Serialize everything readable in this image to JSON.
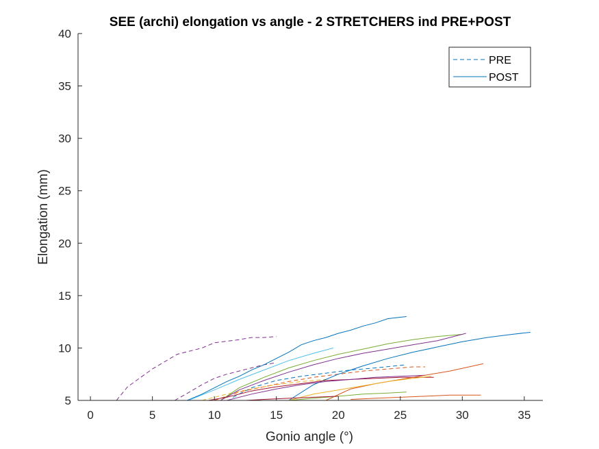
{
  "chart_data": {
    "type": "line",
    "title": "SEE (archi) elongation vs angle - 2 STRETCHERS ind PRE+POST",
    "xlabel": "Gonio angle (°)",
    "ylabel": "Elongation (mm)",
    "xlim": [
      -1,
      36.5
    ],
    "ylim": [
      5,
      40
    ],
    "xticks": [
      0,
      5,
      10,
      15,
      20,
      25,
      30,
      35
    ],
    "yticks": [
      5,
      10,
      15,
      20,
      25,
      30,
      35,
      40
    ],
    "grid": false,
    "legend": {
      "placement": "top-right",
      "entries": [
        {
          "label": "PRE",
          "style": "dashed",
          "color": "#0072BD"
        },
        {
          "label": "POST",
          "style": "solid",
          "color": "#0072BD"
        }
      ]
    },
    "series": [
      {
        "group": "PRE",
        "style": "dashed",
        "color": "#7E2F8E",
        "x": [
          2.1,
          3,
          5,
          7,
          9,
          10,
          12,
          13,
          14,
          15
        ],
        "y": [
          5,
          6.3,
          8,
          9.4,
          10,
          10.5,
          10.8,
          11,
          11,
          11.1
        ]
      },
      {
        "group": "PRE",
        "style": "dashed",
        "color": "#7E2F8E",
        "x": [
          6.8,
          8,
          9,
          10,
          11,
          12,
          13,
          14,
          15
        ],
        "y": [
          5,
          5.8,
          6.5,
          7.1,
          7.5,
          7.8,
          8.1,
          8.4,
          8.6
        ]
      },
      {
        "group": "PRE",
        "style": "dashed",
        "color": "#0072BD",
        "x": [
          11.5,
          13,
          15,
          17,
          19,
          21,
          23,
          25.5
        ],
        "y": [
          5.3,
          6.2,
          6.9,
          7.3,
          7.6,
          7.9,
          8.1,
          8.4
        ]
      },
      {
        "group": "PRE",
        "style": "dashed",
        "color": "#D95319",
        "x": [
          10,
          12,
          14,
          16,
          18,
          20,
          22,
          24,
          26,
          27
        ],
        "y": [
          5,
          5.8,
          6.3,
          6.8,
          7.2,
          7.5,
          7.8,
          8,
          8.2,
          8.2
        ]
      },
      {
        "group": "PRE",
        "style": "dashed",
        "color": "#EDB120",
        "x": [
          9,
          11,
          13,
          15,
          17,
          19
        ],
        "y": [
          5,
          5.6,
          6.1,
          6.5,
          6.8,
          7
        ]
      },
      {
        "group": "POST",
        "style": "solid",
        "color": "#0072BD",
        "x": [
          7.8,
          9,
          10,
          11,
          12,
          13,
          14,
          15,
          16,
          17,
          18,
          19,
          20,
          21,
          22,
          23,
          24,
          25.5
        ],
        "y": [
          5,
          5.6,
          6.2,
          6.8,
          7.3,
          7.9,
          8.4,
          9,
          9.6,
          10.3,
          10.7,
          11,
          11.4,
          11.7,
          12.1,
          12.4,
          12.8,
          13
        ]
      },
      {
        "group": "POST",
        "style": "solid",
        "color": "#4DBEEE",
        "x": [
          7.9,
          10,
          12,
          14,
          16,
          18,
          19.6
        ],
        "y": [
          5,
          6,
          7,
          7.9,
          8.8,
          9.5,
          10
        ]
      },
      {
        "group": "POST",
        "style": "solid",
        "color": "#77AC30",
        "x": [
          10.5,
          12,
          14,
          16,
          18,
          20,
          22,
          24,
          26,
          28,
          30
        ],
        "y": [
          5,
          6.2,
          7.2,
          8.1,
          8.8,
          9.4,
          9.9,
          10.4,
          10.8,
          11.1,
          11.3
        ]
      },
      {
        "group": "POST",
        "style": "solid",
        "color": "#7E2F8E",
        "x": [
          10.5,
          12,
          14,
          16,
          18,
          20,
          22,
          24,
          26,
          28,
          30.3
        ],
        "y": [
          5,
          6,
          6.9,
          7.7,
          8.4,
          9,
          9.5,
          9.9,
          10.3,
          10.7,
          11.4
        ]
      },
      {
        "group": "POST",
        "style": "solid",
        "color": "#0072BD",
        "x": [
          16,
          18,
          20,
          22,
          24,
          26,
          28,
          30,
          32,
          34,
          35.5
        ],
        "y": [
          5,
          6.5,
          7.5,
          8.3,
          9,
          9.6,
          10.1,
          10.6,
          11,
          11.3,
          11.5
        ]
      },
      {
        "group": "POST",
        "style": "solid",
        "color": "#A2142F",
        "x": [
          9.5,
          11,
          13,
          15,
          17,
          19,
          21,
          23,
          25,
          27.7
        ],
        "y": [
          5,
          5.3,
          5.9,
          6.3,
          6.6,
          6.9,
          7,
          7.1,
          7.2,
          7.2
        ]
      },
      {
        "group": "POST",
        "style": "solid",
        "color": "#7E2F8E",
        "x": [
          11,
          13,
          15,
          17,
          19,
          21,
          23,
          25,
          27
        ],
        "y": [
          5,
          5.6,
          6.1,
          6.5,
          6.8,
          7,
          7.2,
          7.3,
          7.4
        ]
      },
      {
        "group": "POST",
        "style": "solid",
        "color": "#D95319",
        "x": [
          19,
          21,
          23,
          25,
          27,
          29,
          31.7
        ],
        "y": [
          5,
          6.1,
          6.6,
          7,
          7.4,
          7.8,
          8.5
        ]
      },
      {
        "group": "POST",
        "style": "solid",
        "color": "#EDB120",
        "x": [
          16,
          18,
          20,
          22,
          24,
          26,
          27.5
        ],
        "y": [
          5,
          5.6,
          6,
          6.4,
          6.8,
          7.1,
          7.3
        ]
      },
      {
        "group": "POST",
        "style": "solid",
        "color": "#77AC30",
        "x": [
          16,
          18,
          20,
          22,
          24,
          25.5
        ],
        "y": [
          5,
          5.2,
          5.4,
          5.6,
          5.7,
          5.8
        ]
      },
      {
        "group": "POST",
        "style": "solid",
        "color": "#D95319",
        "x": [
          21,
          23,
          25,
          27,
          29,
          31.5
        ],
        "y": [
          5.1,
          5.2,
          5.3,
          5.4,
          5.5,
          5.5
        ]
      },
      {
        "group": "POST",
        "style": "solid",
        "color": "#A2142F",
        "x": [
          12.5,
          14,
          16,
          18,
          20
        ],
        "y": [
          5,
          5.1,
          5.2,
          5.3,
          5.4
        ]
      }
    ]
  }
}
